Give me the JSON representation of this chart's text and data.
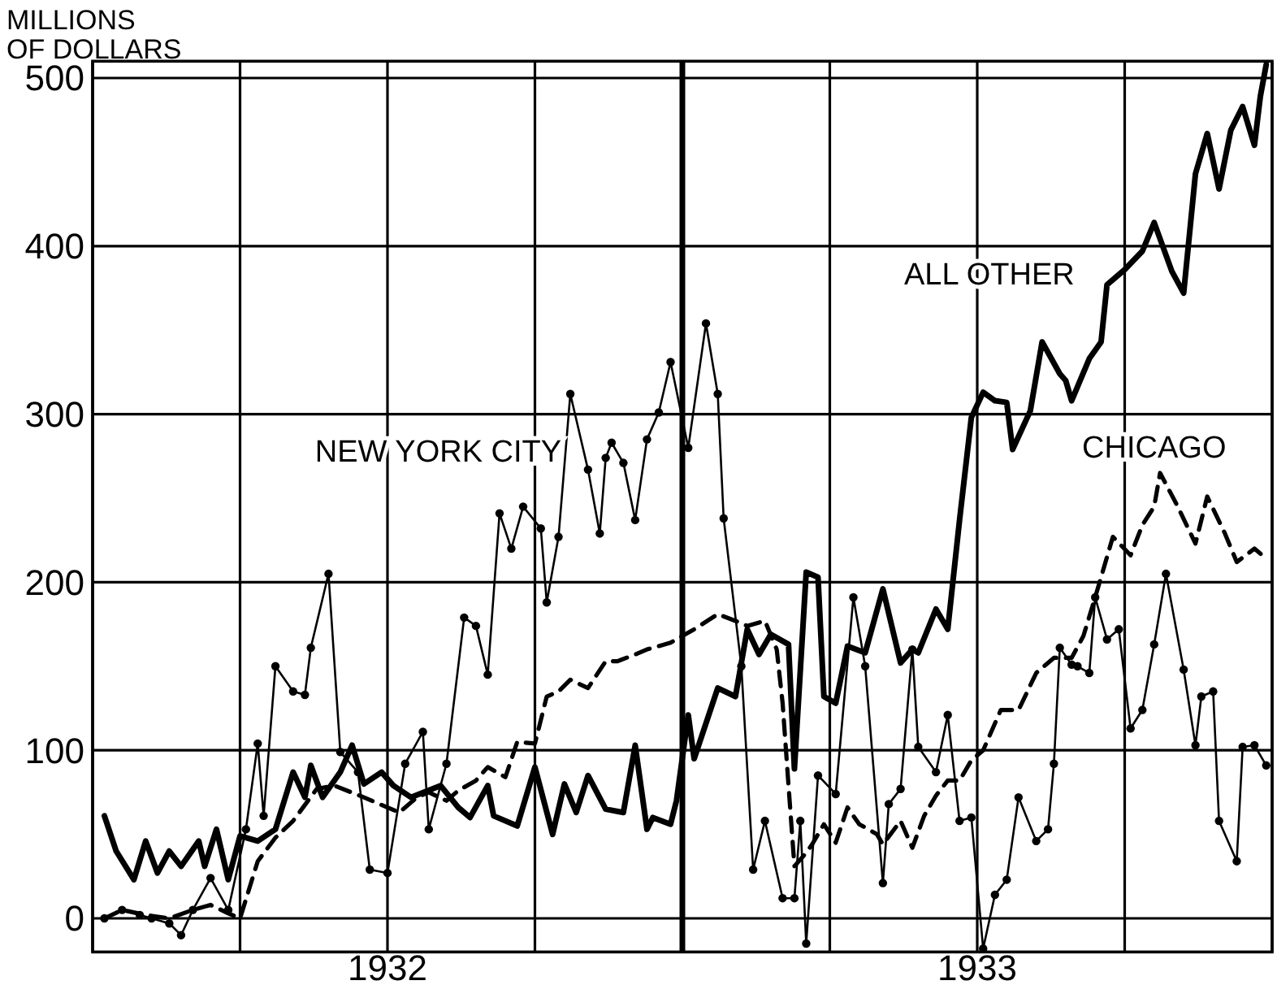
{
  "chart_data": {
    "type": "line",
    "ylabel": "MILLIONS\nOF DOLLARS",
    "xlim": [
      1932,
      1934
    ],
    "ylim": [
      -20,
      510
    ],
    "xticks": [
      {
        "value": 1932,
        "label": null
      },
      {
        "value": 1932.25,
        "label": null
      },
      {
        "value": 1932.5,
        "label": "1932"
      },
      {
        "value": 1932.75,
        "label": null
      },
      {
        "value": 1933,
        "label": null
      },
      {
        "value": 1933.25,
        "label": null
      },
      {
        "value": 1933.5,
        "label": "1933"
      },
      {
        "value": 1933.75,
        "label": null
      },
      {
        "value": 1934,
        "label": null
      }
    ],
    "yticks": [
      0,
      100,
      200,
      300,
      400,
      500
    ],
    "grid": true,
    "ref_lines": [
      {
        "axis": "x",
        "value": 1933
      }
    ],
    "series": [
      {
        "name": "ALL OTHER",
        "color": "#000000",
        "line_style": "solid",
        "marker": "none",
        "x": [
          1932.02,
          1932.04,
          1932.07,
          1932.09,
          1932.11,
          1932.13,
          1932.15,
          1932.18,
          1932.19,
          1932.21,
          1932.23,
          1932.25,
          1932.28,
          1932.31,
          1932.34,
          1932.36,
          1932.37,
          1932.39,
          1932.42,
          1932.44,
          1932.46,
          1932.49,
          1932.51,
          1932.54,
          1932.59,
          1932.62,
          1932.64,
          1932.67,
          1932.68,
          1932.72,
          1932.75,
          1932.78,
          1932.8,
          1932.82,
          1932.84,
          1932.87,
          1932.9,
          1932.92,
          1932.94,
          1932.95,
          1932.98,
          1932.99,
          1933.01,
          1933.02,
          1933.06,
          1933.09,
          1933.11,
          1933.13,
          1933.15,
          1933.18,
          1933.19,
          1933.21,
          1933.23,
          1933.24,
          1933.26,
          1933.28,
          1933.31,
          1933.34,
          1933.37,
          1933.39,
          1933.4,
          1933.43,
          1933.45,
          1933.47,
          1933.49,
          1933.51,
          1933.53,
          1933.55,
          1933.56,
          1933.59,
          1933.61,
          1933.64,
          1933.65,
          1933.66,
          1933.69,
          1933.71,
          1933.72,
          1933.75,
          1933.78,
          1933.8,
          1933.83,
          1933.85,
          1933.87,
          1933.89,
          1933.91,
          1933.93,
          1933.95,
          1933.97,
          1933.98,
          1933.99
        ],
        "values": [
          61,
          40,
          23,
          46,
          27,
          40,
          31,
          46,
          31,
          53,
          23,
          49,
          46,
          53,
          87,
          72,
          91,
          72,
          87,
          103,
          80,
          87,
          79,
          72,
          79,
          66,
          60,
          79,
          61,
          55,
          90,
          50,
          80,
          63,
          85,
          65,
          63,
          103,
          53,
          60,
          56,
          70,
          121,
          95,
          137,
          132,
          172,
          157,
          169,
          163,
          89,
          206,
          203,
          132,
          128,
          162,
          158,
          196,
          152,
          160,
          158,
          184,
          172,
          237,
          298,
          313,
          308,
          307,
          279,
          302,
          343,
          324,
          320,
          308,
          333,
          343,
          377,
          386,
          397,
          414,
          385,
          372,
          443,
          467,
          434,
          469,
          483,
          460,
          489,
          508
        ]
      },
      {
        "name": "NEW YORK CITY",
        "color": "#000000",
        "line_style": "solid",
        "marker": "circle",
        "x": [
          1932.02,
          1932.05,
          1932.08,
          1932.1,
          1932.13,
          1932.15,
          1932.17,
          1932.2,
          1932.23,
          1932.26,
          1932.28,
          1932.29,
          1932.31,
          1932.34,
          1932.36,
          1932.37,
          1932.4,
          1932.42,
          1932.45,
          1932.47,
          1932.5,
          1932.53,
          1932.56,
          1932.57,
          1932.6,
          1932.63,
          1932.65,
          1932.67,
          1932.69,
          1932.71,
          1932.73,
          1932.76,
          1932.77,
          1932.79,
          1932.81,
          1932.84,
          1932.86,
          1932.87,
          1932.88,
          1932.9,
          1932.92,
          1932.94,
          1932.96,
          1932.98,
          1933.01,
          1933.04,
          1933.06,
          1933.07,
          1933.1,
          1933.12,
          1933.14,
          1933.17,
          1933.19,
          1933.2,
          1933.21,
          1933.23,
          1933.26,
          1933.29,
          1933.31,
          1933.34,
          1933.35,
          1933.37,
          1933.39,
          1933.4,
          1933.43,
          1933.45,
          1933.47,
          1933.49,
          1933.51,
          1933.53,
          1933.55,
          1933.57,
          1933.6,
          1933.62,
          1933.63,
          1933.64,
          1933.66,
          1933.67,
          1933.69,
          1933.7,
          1933.72,
          1933.74,
          1933.76,
          1933.78,
          1933.8,
          1933.82,
          1933.85,
          1933.87,
          1933.88,
          1933.9,
          1933.91,
          1933.94,
          1933.95,
          1933.97,
          1933.99
        ],
        "values": [
          0,
          5,
          2,
          0,
          -3,
          -10,
          5,
          24,
          5,
          53,
          104,
          61,
          150,
          135,
          133,
          161,
          205,
          99,
          87,
          29,
          27,
          92,
          111,
          53,
          92,
          179,
          174,
          145,
          241,
          220,
          245,
          232,
          188,
          227,
          312,
          267,
          229,
          274,
          283,
          271,
          237,
          285,
          301,
          331,
          280,
          354,
          312,
          238,
          150,
          29,
          58,
          12,
          12,
          58,
          -15,
          85,
          74,
          191,
          150,
          21,
          68,
          77,
          160,
          102,
          87,
          121,
          58,
          60,
          -18,
          14,
          23,
          72,
          46,
          53,
          92,
          161,
          151,
          150,
          146,
          191,
          166,
          172,
          113,
          124,
          163,
          205,
          148,
          103,
          132,
          135,
          58,
          34,
          102,
          103,
          91
        ]
      },
      {
        "name": "CHICAGO",
        "color": "#000000",
        "line_style": "dashed",
        "marker": "none",
        "x": [
          1932.02,
          1932.05,
          1932.09,
          1932.13,
          1932.17,
          1932.2,
          1932.23,
          1932.25,
          1932.28,
          1932.31,
          1932.34,
          1932.38,
          1932.41,
          1932.46,
          1932.52,
          1932.55,
          1932.57,
          1932.6,
          1932.62,
          1932.65,
          1932.67,
          1932.7,
          1932.72,
          1932.75,
          1932.77,
          1932.79,
          1932.81,
          1932.84,
          1932.87,
          1932.89,
          1932.92,
          1932.94,
          1932.98,
          1933.02,
          1933.06,
          1933.09,
          1933.11,
          1933.14,
          1933.16,
          1933.17,
          1933.18,
          1933.19,
          1933.21,
          1933.22,
          1933.24,
          1933.26,
          1933.28,
          1933.3,
          1933.33,
          1933.34,
          1933.37,
          1933.39,
          1933.41,
          1933.43,
          1933.45,
          1933.47,
          1933.49,
          1933.51,
          1933.54,
          1933.57,
          1933.6,
          1933.63,
          1933.66,
          1933.68,
          1933.7,
          1933.73,
          1933.76,
          1933.78,
          1933.8,
          1933.81,
          1933.84,
          1933.87,
          1933.89,
          1933.92,
          1933.94,
          1933.97,
          1933.99
        ],
        "values": [
          0,
          5,
          2,
          0,
          5,
          8,
          3,
          0,
          34,
          48,
          58,
          77,
          79,
          72,
          63,
          72,
          75,
          70,
          76,
          82,
          90,
          84,
          105,
          104,
          132,
          135,
          142,
          137,
          153,
          153,
          157,
          160,
          164,
          172,
          181,
          177,
          174,
          177,
          160,
          128,
          79,
          31,
          39,
          44,
          56,
          45,
          66,
          56,
          50,
          44,
          58,
          42,
          61,
          73,
          82,
          82,
          94,
          100,
          124,
          124,
          146,
          155,
          155,
          168,
          191,
          227,
          216,
          234,
          245,
          265,
          245,
          223,
          251,
          229,
          212,
          220,
          214
        ]
      }
    ]
  }
}
